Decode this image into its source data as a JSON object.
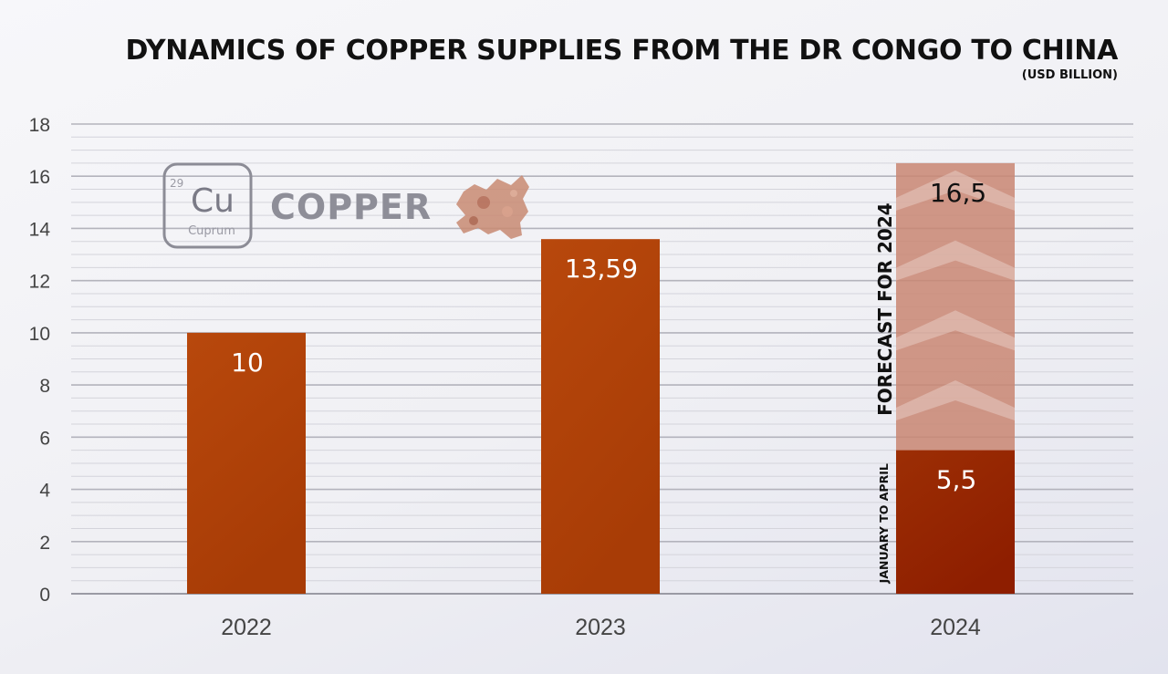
{
  "colors": {
    "bar_main": "#b0420a",
    "bar_partial": "#972200",
    "bar_forecast": "#c98672",
    "grid_major": "#b3b3bc",
    "grid_minor": "#d4d4db"
  },
  "logo": {
    "number": "29",
    "symbol": "Cu",
    "name": "Cuprum",
    "word": "COPPER",
    "icon": "copper-nugget-icon"
  },
  "chart_data": {
    "type": "bar",
    "title": "DYNAMICS OF COPPER SUPPLIES FROM THE DR CONGO TO CHINA",
    "subtitle": "(USD BILLION)",
    "categories": [
      "2022",
      "2023",
      "2024"
    ],
    "ylim": [
      0,
      18
    ],
    "yticks": [
      0,
      2,
      4,
      6,
      8,
      10,
      12,
      14,
      16,
      18
    ],
    "grid": true,
    "series": [
      {
        "values": [
          10,
          13.59,
          5.5
        ],
        "labels": [
          "10",
          "13,59",
          "5,5"
        ]
      },
      {
        "values": [
          null,
          null,
          16.5
        ],
        "labels": [
          "",
          "",
          "16,5"
        ]
      }
    ],
    "annotations": [
      "FORECAST FOR 2024",
      "JANUARY TO APRIL"
    ]
  }
}
